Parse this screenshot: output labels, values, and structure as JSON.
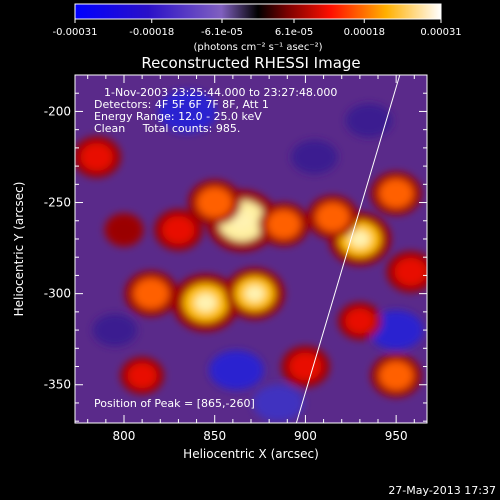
{
  "colorbar": {
    "ticks": [
      "-0.00031",
      "-0.00018",
      "-6.1e-05",
      "6.1e-05",
      "0.00018",
      "0.00031"
    ],
    "unit_label": "(photons cm⁻² s⁻¹ asec⁻²)",
    "range": [
      -0.00031,
      0.00031
    ]
  },
  "title": "Reconstructed RHESSI Image",
  "info": {
    "time": "1-Nov-2003 23:25:44.000 to 23:27:48.000",
    "detectors": "Detectors: 4F 5F 6F 7F 8F, Att 1",
    "energy": "Energy Range: 12.0 - 25.0 keV",
    "clean": "Clean     Total counts: 985."
  },
  "peak": "Position of Peak = [865,-260]",
  "axes": {
    "xlabel": "Heliocentric X (arcsec)",
    "ylabel": "Heliocentric Y (arcsec)",
    "x_ticks": [
      "800",
      "850",
      "900",
      "950"
    ],
    "y_ticks": [
      "-200",
      "-250",
      "-300",
      "-350"
    ],
    "xlim": [
      773,
      967
    ],
    "ylim": [
      -371,
      -180
    ]
  },
  "footer": "27-May-2013 17:37",
  "chart_data": {
    "type": "heatmap",
    "title": "Reconstructed RHESSI Image",
    "xlabel": "Heliocentric X (arcsec)",
    "ylabel": "Heliocentric Y (arcsec)",
    "xlim": [
      773,
      967
    ],
    "ylim": [
      -371,
      -180
    ],
    "value_range": [
      -0.00031,
      0.00031
    ],
    "colorbar_ticks": [
      -0.00031,
      -0.00018,
      -6.1e-05,
      6.1e-05,
      0.00018,
      0.00031
    ],
    "peak_position": [
      865,
      -260
    ],
    "hot_spots": [
      {
        "x": 865,
        "y": -260,
        "level": 1.0
      },
      {
        "x": 845,
        "y": -305,
        "level": 0.9
      },
      {
        "x": 872,
        "y": -300,
        "level": 0.75
      },
      {
        "x": 815,
        "y": -300,
        "level": 0.6
      },
      {
        "x": 930,
        "y": -270,
        "level": 0.8
      },
      {
        "x": 915,
        "y": -258,
        "level": 0.55
      },
      {
        "x": 888,
        "y": -262,
        "level": 0.55
      },
      {
        "x": 850,
        "y": -250,
        "level": 0.6
      },
      {
        "x": 830,
        "y": -265,
        "level": 0.5
      },
      {
        "x": 950,
        "y": -245,
        "level": 0.55
      },
      {
        "x": 958,
        "y": -288,
        "level": 0.5
      },
      {
        "x": 785,
        "y": -225,
        "level": 0.5
      },
      {
        "x": 900,
        "y": -340,
        "level": 0.5
      },
      {
        "x": 950,
        "y": -345,
        "level": 0.55
      },
      {
        "x": 810,
        "y": -345,
        "level": 0.4
      },
      {
        "x": 930,
        "y": -315,
        "level": 0.4
      },
      {
        "x": 800,
        "y": -265,
        "level": 0.3
      }
    ],
    "cold_spots": [
      {
        "x": 835,
        "y": -200,
        "level": -0.7
      },
      {
        "x": 862,
        "y": -342,
        "level": -0.6
      },
      {
        "x": 950,
        "y": -320,
        "level": -0.6
      },
      {
        "x": 885,
        "y": -360,
        "level": -0.5
      },
      {
        "x": 905,
        "y": -225,
        "level": -0.4
      },
      {
        "x": 935,
        "y": -205,
        "level": -0.4
      },
      {
        "x": 795,
        "y": -320,
        "level": -0.35
      }
    ],
    "limb_line": [
      [
        895,
        -371
      ],
      [
        952,
        -180
      ]
    ]
  }
}
